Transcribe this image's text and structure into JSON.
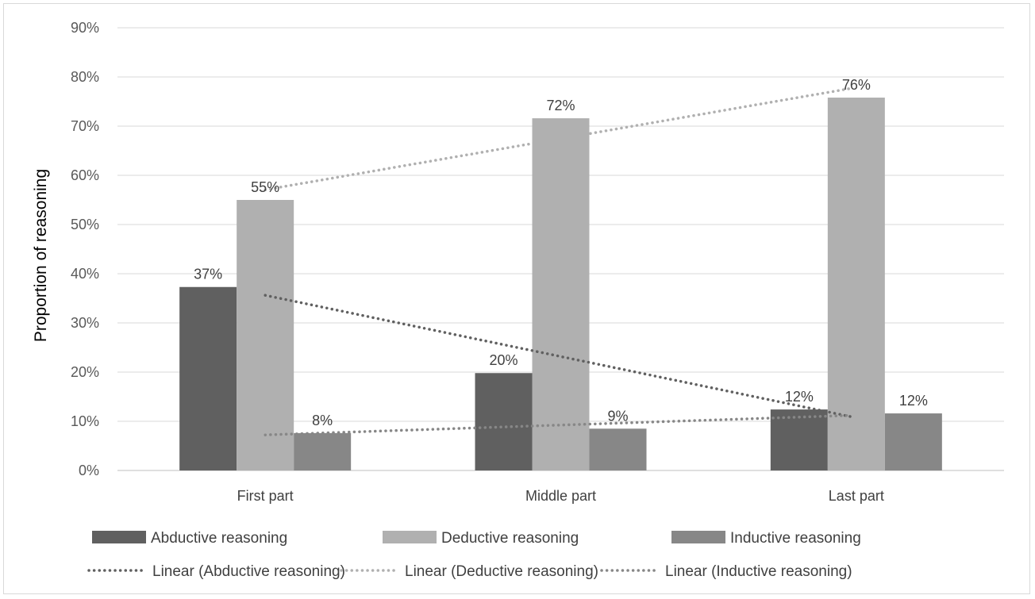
{
  "chart_data": {
    "type": "bar",
    "title": "",
    "xlabel": "",
    "ylabel": "Proportion of reasoning",
    "ylim": [
      0,
      90
    ],
    "yticks": [
      "0%",
      "10%",
      "20%",
      "30%",
      "40%",
      "50%",
      "60%",
      "70%",
      "80%",
      "90%"
    ],
    "categories": [
      "First part",
      "Middle part",
      "Last part"
    ],
    "grid": true,
    "legend_position": "bottom",
    "series": [
      {
        "name": "Abductive reasoning",
        "values": [
          37.3,
          19.8,
          12.4
        ],
        "labels": [
          "37%",
          "20%",
          "12%"
        ],
        "color": "#606060"
      },
      {
        "name": "Deductive reasoning",
        "values": [
          55.0,
          71.6,
          75.8
        ],
        "labels": [
          "55%",
          "72%",
          "76%"
        ],
        "color": "#b0b0b0"
      },
      {
        "name": "Inductive reasoning",
        "values": [
          7.6,
          8.5,
          11.6
        ],
        "labels": [
          "8%",
          "9%",
          "12%"
        ],
        "color": "#878787"
      }
    ],
    "trendlines": [
      {
        "name": "Linear (Abductive reasoning)",
        "color": "#606060"
      },
      {
        "name": "Linear (Deductive reasoning)",
        "color": "#b0b0b0"
      },
      {
        "name": "Linear (Inductive reasoning)",
        "color": "#878787"
      }
    ]
  }
}
